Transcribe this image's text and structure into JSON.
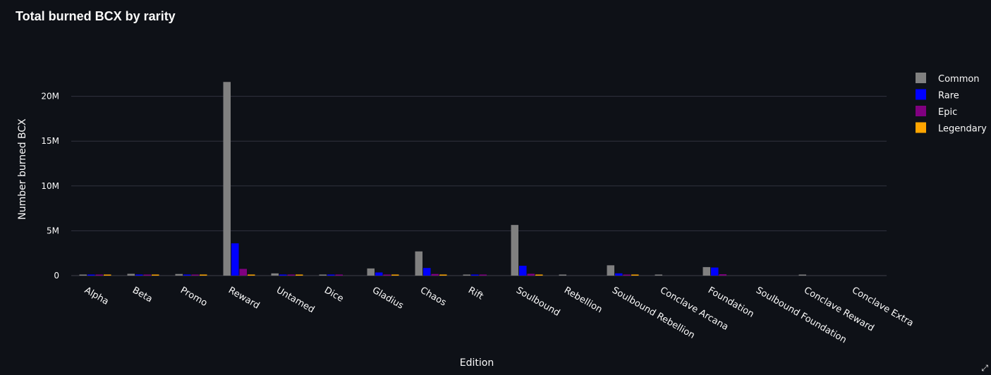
{
  "chart_data": {
    "type": "bar",
    "title": "Total burned BCX by rarity",
    "xlabel": "Edition",
    "ylabel": "Number burned BCX",
    "categories": [
      "Alpha",
      "Beta",
      "Promo",
      "Reward",
      "Untamed",
      "Dice",
      "Gladius",
      "Chaos",
      "Rift",
      "Soulbound",
      "Rebellion",
      "Soulbound Rebellion",
      "Conclave Arcana",
      "Foundation",
      "Soulbound Foundation",
      "Conclave Reward",
      "Conclave Extra"
    ],
    "series": [
      {
        "name": "Common",
        "color": "#808080",
        "values": [
          50000,
          200000,
          180000,
          21600000,
          250000,
          90000,
          800000,
          2700000,
          90000,
          5650000,
          60000,
          1150000,
          60000,
          950000,
          0,
          60000,
          0
        ]
      },
      {
        "name": "Rare",
        "color": "#0000ff",
        "values": [
          30000,
          50000,
          50000,
          3600000,
          60000,
          30000,
          350000,
          850000,
          30000,
          1100000,
          0,
          250000,
          0,
          900000,
          0,
          0,
          0
        ]
      },
      {
        "name": "Epic",
        "color": "#800080",
        "values": [
          20000,
          30000,
          30000,
          750000,
          40000,
          20000,
          100000,
          180000,
          20000,
          200000,
          0,
          80000,
          0,
          150000,
          0,
          0,
          0
        ]
      },
      {
        "name": "Legendary",
        "color": "#ffa500",
        "values": [
          20000,
          30000,
          30000,
          100000,
          40000,
          0,
          60000,
          80000,
          0,
          80000,
          0,
          50000,
          0,
          0,
          0,
          0,
          0
        ]
      }
    ],
    "yticks": [
      0,
      5000000,
      10000000,
      15000000,
      20000000
    ],
    "ytick_labels": [
      "0",
      "5M",
      "10M",
      "15M",
      "20M"
    ],
    "ylim": [
      0,
      22800000
    ],
    "grid": true,
    "legend_position": "top-right"
  }
}
